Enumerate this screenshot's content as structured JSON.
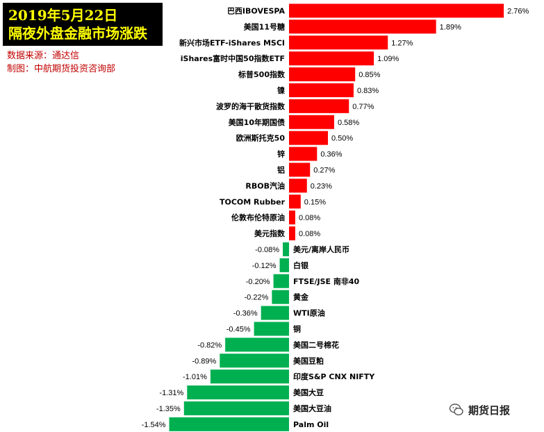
{
  "title": {
    "line1": "2019年5月22日",
    "line2": "隔夜外盘金融市场涨跌"
  },
  "source": {
    "line1": "数据来源：通达信",
    "line2": "制图：中航期货投资咨询部"
  },
  "watermark": {
    "text": "期货日报",
    "icon": "wechat-bubble-icon"
  },
  "colors": {
    "up": "#ff0000",
    "down": "#00b050",
    "title_bg": "#000000",
    "title_text": "#ffff00",
    "source_text": "#c00000"
  },
  "chart_data": {
    "type": "bar",
    "orientation": "horizontal",
    "unit": "%",
    "categories": [
      "巴西IBOVESPA",
      "美国11号糖",
      "新兴市场ETF-iShares MSCI",
      "iShares富时中国50指数ETF",
      "标普500指数",
      "镍",
      "波罗的海干散货指数",
      "美国10年期国债",
      "欧洲斯托克50",
      "锌",
      "铝",
      "RBOB汽油",
      "TOCOM Rubber",
      "伦敦布伦特原油",
      "美元指数",
      "美元/离岸人民币",
      "白银",
      "FTSE/JSE 南非40",
      "黄金",
      "WTI原油",
      "铜",
      "美国二号棉花",
      "美国豆粕",
      "印度S&P CNX NIFTY",
      "美国大豆",
      "美国大豆油",
      "Palm Oil"
    ],
    "values": [
      2.76,
      1.89,
      1.27,
      1.09,
      0.85,
      0.83,
      0.77,
      0.58,
      0.5,
      0.36,
      0.27,
      0.23,
      0.15,
      0.08,
      0.08,
      -0.08,
      -0.12,
      -0.2,
      -0.22,
      -0.36,
      -0.45,
      -0.82,
      -0.89,
      -1.01,
      -1.31,
      -1.35,
      -1.54
    ],
    "labels": [
      "2.76%",
      "1.89%",
      "1.27%",
      "1.09%",
      "0.85%",
      "0.83%",
      "0.77%",
      "0.58%",
      "0.50%",
      "0.36%",
      "0.27%",
      "0.23%",
      "0.15%",
      "0.08%",
      "0.08%",
      "-0.08%",
      "-0.12%",
      "-0.20%",
      "-0.22%",
      "-0.36%",
      "-0.45%",
      "-0.82%",
      "-0.89%",
      "-1.01%",
      "-1.31%",
      "-1.35%",
      "-1.54%"
    ],
    "grid": false,
    "legend": "none"
  }
}
